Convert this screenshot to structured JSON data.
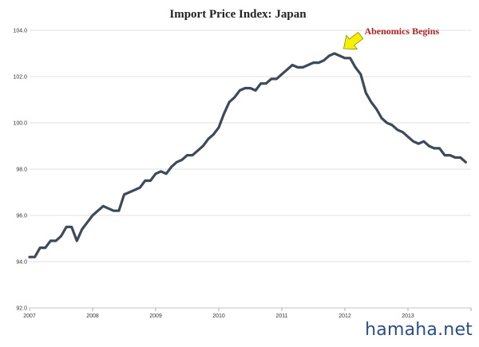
{
  "watermark": "hamaha.net",
  "colors": {
    "line": "#3d4a5c",
    "grid": "#d8d8d8",
    "annotation_text": "#b22222",
    "arrow_fill": "#f5f000",
    "arrow_stroke": "#8a8a00"
  },
  "chart_data": {
    "type": "line",
    "title": "Import Price Index: Japan",
    "xlabel": "",
    "ylabel": "",
    "ylim": [
      92,
      104
    ],
    "yticks": [
      {
        "value": 92,
        "label": "92.0"
      },
      {
        "value": 94,
        "label": "94.0"
      },
      {
        "value": 96,
        "label": "96.0"
      },
      {
        "value": 98,
        "label": "98.0"
      },
      {
        "value": 100,
        "label": "100.0"
      },
      {
        "value": 102,
        "label": "102.0"
      },
      {
        "value": 104,
        "label": "104.0"
      }
    ],
    "xlim": [
      2007.0,
      2014.0
    ],
    "xticks": [
      {
        "value": 2007,
        "label": "2007"
      },
      {
        "value": 2008,
        "label": "2008"
      },
      {
        "value": 2009,
        "label": "2009"
      },
      {
        "value": 2010,
        "label": "2010"
      },
      {
        "value": 2011,
        "label": "2011"
      },
      {
        "value": 2012,
        "label": "2012"
      },
      {
        "value": 2013,
        "label": "2013"
      }
    ],
    "grid": true,
    "series": [
      {
        "name": "",
        "x": [
          2007.0,
          2007.083,
          2007.167,
          2007.25,
          2007.333,
          2007.417,
          2007.5,
          2007.583,
          2007.667,
          2007.75,
          2007.833,
          2007.917,
          2008.0,
          2008.083,
          2008.167,
          2008.25,
          2008.333,
          2008.417,
          2008.5,
          2008.583,
          2008.667,
          2008.75,
          2008.833,
          2008.917,
          2009.0,
          2009.083,
          2009.167,
          2009.25,
          2009.333,
          2009.417,
          2009.5,
          2009.583,
          2009.667,
          2009.75,
          2009.833,
          2009.917,
          2010.0,
          2010.083,
          2010.167,
          2010.25,
          2010.333,
          2010.417,
          2010.5,
          2010.583,
          2010.667,
          2010.75,
          2010.833,
          2010.917,
          2011.0,
          2011.083,
          2011.167,
          2011.25,
          2011.333,
          2011.417,
          2011.5,
          2011.583,
          2011.667,
          2011.75,
          2011.833,
          2011.917,
          2012.0,
          2012.083,
          2012.167,
          2012.25,
          2012.333,
          2012.417,
          2012.5,
          2012.583,
          2012.667,
          2012.75,
          2012.833,
          2012.917,
          2013.0,
          2013.083,
          2013.167,
          2013.25,
          2013.333,
          2013.417,
          2013.5,
          2013.583,
          2013.667,
          2013.75,
          2013.833,
          2013.917
        ],
        "values": [
          94.2,
          94.2,
          94.6,
          94.6,
          94.9,
          94.9,
          95.1,
          95.5,
          95.5,
          94.9,
          95.4,
          95.7,
          96.0,
          96.2,
          96.4,
          96.3,
          96.2,
          96.2,
          96.9,
          97.0,
          97.1,
          97.2,
          97.5,
          97.5,
          97.8,
          97.9,
          97.8,
          98.1,
          98.3,
          98.4,
          98.6,
          98.6,
          98.8,
          99.0,
          99.3,
          99.5,
          99.8,
          100.4,
          100.9,
          101.1,
          101.4,
          101.5,
          101.5,
          101.4,
          101.7,
          101.7,
          101.9,
          101.9,
          102.1,
          102.3,
          102.5,
          102.4,
          102.4,
          102.5,
          102.6,
          102.6,
          102.7,
          102.9,
          103.0,
          102.9,
          102.8,
          102.8,
          102.4,
          102.1,
          101.3,
          100.9,
          100.6,
          100.2,
          100.0,
          99.9,
          99.7,
          99.6,
          99.4,
          99.2,
          99.1,
          99.2,
          99.0,
          98.9,
          98.9,
          98.6,
          98.6,
          98.5,
          98.5,
          98.3
        ]
      }
    ],
    "annotations": [
      {
        "text": "Abenomics Begins",
        "x": 2011.917,
        "y": 103.0
      }
    ]
  }
}
